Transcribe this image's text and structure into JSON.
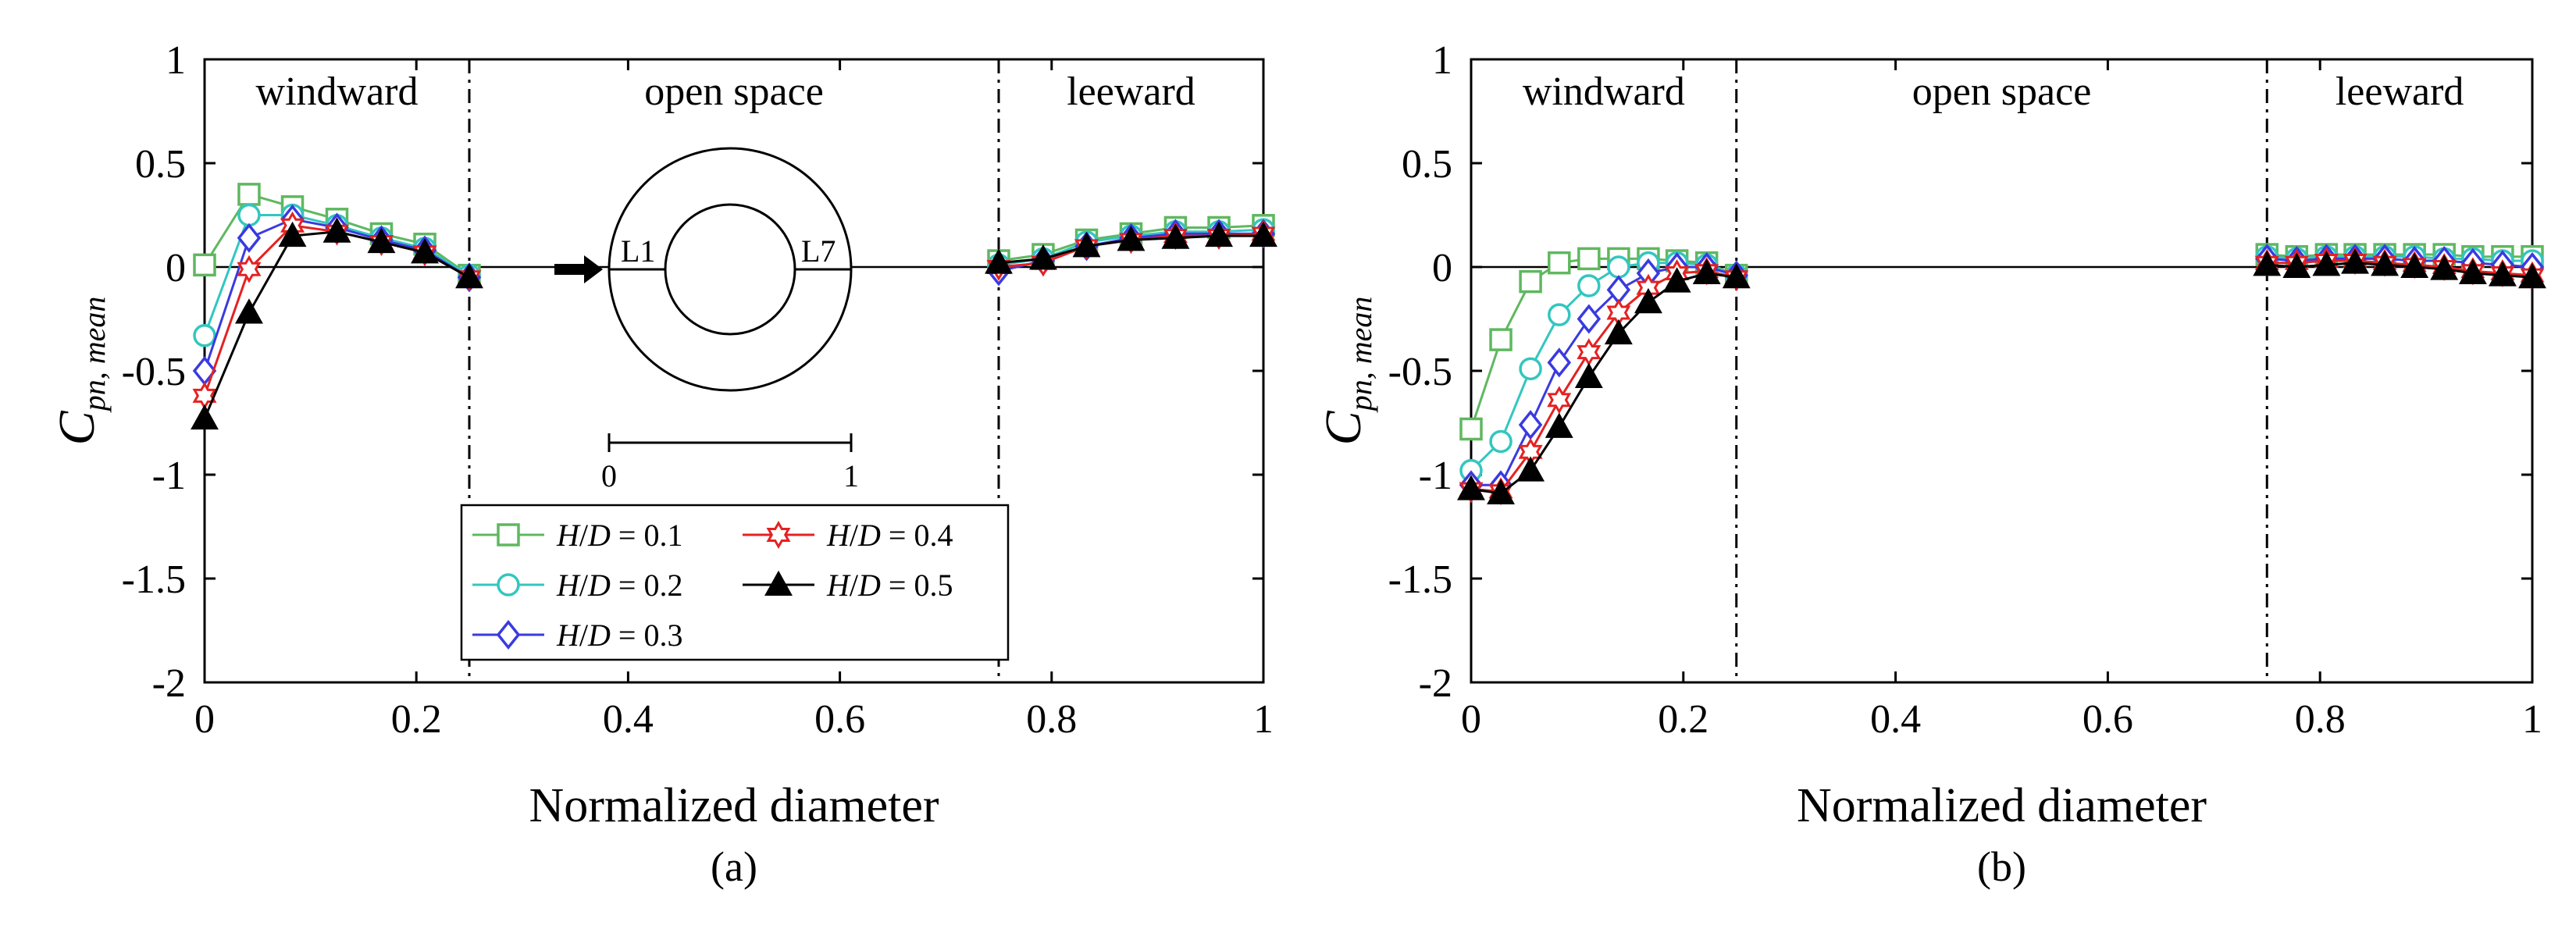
{
  "figure": {
    "marker_styles": {
      "H/D = 0.1": {
        "marker": "square",
        "color": "#5fb85f"
      },
      "H/D = 0.2": {
        "marker": "circle",
        "color": "#33c6c0"
      },
      "H/D = 0.3": {
        "marker": "diamond",
        "color": "#3a3ae0"
      },
      "H/D = 0.4": {
        "marker": "hexagram",
        "color": "#e52121"
      },
      "H/D = 0.5": {
        "marker": "triangle-filled",
        "color": "#000000"
      }
    }
  },
  "chart_data": [
    {
      "type": "line",
      "panel_label": "(a)",
      "xlabel": "Normalized diameter",
      "ylabel": {
        "main": "C",
        "sub": "pn, mean"
      },
      "xlim": [
        0,
        1
      ],
      "ylim": [
        -2,
        1
      ],
      "xticks": [
        "0",
        "0.2",
        "0.4",
        "0.6",
        "0.8",
        "1"
      ],
      "yticks": [
        "1",
        "0.5",
        "0",
        "-0.5",
        "-1",
        "-1.5",
        "-2"
      ],
      "regions": [
        {
          "label": "windward",
          "at": 0.125
        },
        {
          "label": "open space",
          "at": 0.5
        },
        {
          "label": "leeward",
          "at": 0.875
        }
      ],
      "dividers": [
        0.25,
        0.75
      ],
      "legend": {
        "prefix": "H",
        "slash": "/",
        "denominator": "D",
        "entries": [
          {
            "value": "= 0.1",
            "series": 0
          },
          {
            "value": "= 0.4",
            "series": 3
          },
          {
            "value": "= 0.2",
            "series": 1
          },
          {
            "value": "= 0.5",
            "series": 4
          },
          {
            "value": "= 0.3",
            "series": 2
          }
        ]
      },
      "inset": {
        "left_label": "L1",
        "right_label": "L7",
        "scale_start": "0",
        "scale_end": "1"
      },
      "series": [
        {
          "name": "H/D = 0.1",
          "windward": {
            "x": [
              0,
              0.042,
              0.083,
              0.125,
              0.167,
              0.208,
              0.25
            ],
            "y": [
              0.01,
              0.35,
              0.29,
              0.23,
              0.16,
              0.11,
              -0.04
            ]
          },
          "leeward": {
            "x": [
              0.75,
              0.792,
              0.833,
              0.875,
              0.917,
              0.958,
              1.0
            ],
            "y": [
              0.03,
              0.06,
              0.13,
              0.16,
              0.19,
              0.19,
              0.2
            ]
          }
        },
        {
          "name": "H/D = 0.2",
          "windward": {
            "x": [
              0,
              0.042,
              0.083,
              0.125,
              0.167,
              0.208,
              0.25
            ],
            "y": [
              -0.33,
              0.25,
              0.25,
              0.2,
              0.14,
              0.09,
              -0.04
            ]
          },
          "leeward": {
            "x": [
              0.75,
              0.792,
              0.833,
              0.875,
              0.917,
              0.958,
              1.0
            ],
            "y": [
              0.01,
              0.04,
              0.12,
              0.15,
              0.17,
              0.17,
              0.18
            ]
          }
        },
        {
          "name": "H/D = 0.3",
          "windward": {
            "x": [
              0,
              0.042,
              0.083,
              0.125,
              0.167,
              0.208,
              0.25
            ],
            "y": [
              -0.5,
              0.14,
              0.23,
              0.19,
              0.13,
              0.08,
              -0.05
            ]
          },
          "leeward": {
            "x": [
              0.75,
              0.792,
              0.833,
              0.875,
              0.917,
              0.958,
              1.0
            ],
            "y": [
              -0.02,
              0.03,
              0.1,
              0.14,
              0.16,
              0.16,
              0.16
            ]
          }
        },
        {
          "name": "H/D = 0.4",
          "windward": {
            "x": [
              0,
              0.042,
              0.083,
              0.125,
              0.167,
              0.208,
              0.25
            ],
            "y": [
              -0.62,
              -0.01,
              0.2,
              0.17,
              0.12,
              0.07,
              -0.05
            ]
          },
          "leeward": {
            "x": [
              0.75,
              0.792,
              0.833,
              0.875,
              0.917,
              0.958,
              1.0
            ],
            "y": [
              0.0,
              0.02,
              0.1,
              0.13,
              0.15,
              0.15,
              0.16
            ]
          }
        },
        {
          "name": "H/D = 0.5",
          "windward": {
            "x": [
              0,
              0.042,
              0.083,
              0.125,
              0.167,
              0.208,
              0.25
            ],
            "y": [
              -0.73,
              -0.22,
              0.15,
              0.17,
              0.12,
              0.07,
              -0.05
            ]
          },
          "leeward": {
            "x": [
              0.75,
              0.792,
              0.833,
              0.875,
              0.917,
              0.958,
              1.0
            ],
            "y": [
              0.02,
              0.04,
              0.1,
              0.13,
              0.14,
              0.15,
              0.15
            ]
          }
        }
      ]
    },
    {
      "type": "line",
      "panel_label": "(b)",
      "xlabel": "Normalized diameter",
      "ylabel": {
        "main": "C",
        "sub": "pn, mean"
      },
      "xlim": [
        0,
        1
      ],
      "ylim": [
        -2,
        1
      ],
      "xticks": [
        "0",
        "0.2",
        "0.4",
        "0.6",
        "0.8",
        "1"
      ],
      "yticks": [
        "1",
        "0.5",
        "0",
        "-0.5",
        "-1",
        "-1.5",
        "-2"
      ],
      "regions": [
        {
          "label": "windward",
          "at": 0.125
        },
        {
          "label": "open space",
          "at": 0.5
        },
        {
          "label": "leeward",
          "at": 0.875
        }
      ],
      "dividers": [
        0.25,
        0.75
      ],
      "series": [
        {
          "name": "H/D = 0.1",
          "windward": {
            "x": [
              0,
              0.028,
              0.056,
              0.083,
              0.111,
              0.139,
              0.167,
              0.194,
              0.222,
              0.25
            ],
            "y": [
              -0.78,
              -0.35,
              -0.07,
              0.02,
              0.04,
              0.04,
              0.04,
              0.03,
              0.02,
              -0.04
            ]
          },
          "leeward": {
            "x": [
              0.75,
              0.778,
              0.806,
              0.833,
              0.861,
              0.889,
              0.917,
              0.944,
              0.972,
              1.0
            ],
            "y": [
              0.06,
              0.05,
              0.06,
              0.06,
              0.06,
              0.06,
              0.06,
              0.05,
              0.05,
              0.05
            ]
          }
        },
        {
          "name": "H/D = 0.2",
          "windward": {
            "x": [
              0,
              0.028,
              0.056,
              0.083,
              0.111,
              0.139,
              0.167,
              0.194,
              0.222,
              0.25
            ],
            "y": [
              -0.98,
              -0.84,
              -0.49,
              -0.23,
              -0.09,
              0.0,
              0.02,
              0.02,
              0.01,
              -0.04
            ]
          },
          "leeward": {
            "x": [
              0.75,
              0.778,
              0.806,
              0.833,
              0.861,
              0.889,
              0.917,
              0.944,
              0.972,
              1.0
            ],
            "y": [
              0.05,
              0.04,
              0.05,
              0.05,
              0.05,
              0.05,
              0.04,
              0.04,
              0.03,
              0.03
            ]
          }
        },
        {
          "name": "H/D = 0.3",
          "windward": {
            "x": [
              0,
              0.028,
              0.056,
              0.083,
              0.111,
              0.139,
              0.167,
              0.194,
              0.222,
              0.25
            ],
            "y": [
              -1.05,
              -1.05,
              -0.76,
              -0.46,
              -0.25,
              -0.11,
              -0.03,
              0.0,
              0.0,
              -0.04
            ]
          },
          "leeward": {
            "x": [
              0.75,
              0.778,
              0.806,
              0.833,
              0.861,
              0.889,
              0.917,
              0.944,
              0.972,
              1.0
            ],
            "y": [
              0.04,
              0.03,
              0.04,
              0.04,
              0.04,
              0.03,
              0.03,
              0.02,
              0.01,
              0.0
            ]
          }
        },
        {
          "name": "H/D = 0.4",
          "windward": {
            "x": [
              0,
              0.028,
              0.056,
              0.083,
              0.111,
              0.139,
              0.167,
              0.194,
              0.222,
              0.25
            ],
            "y": [
              -1.07,
              -1.08,
              -0.89,
              -0.64,
              -0.41,
              -0.22,
              -0.1,
              -0.03,
              -0.02,
              -0.05
            ]
          },
          "leeward": {
            "x": [
              0.75,
              0.778,
              0.806,
              0.833,
              0.861,
              0.889,
              0.917,
              0.944,
              0.972,
              1.0
            ],
            "y": [
              0.02,
              0.02,
              0.03,
              0.03,
              0.02,
              0.01,
              0.0,
              -0.02,
              -0.03,
              -0.04
            ]
          }
        },
        {
          "name": "H/D = 0.5",
          "windward": {
            "x": [
              0,
              0.028,
              0.056,
              0.083,
              0.111,
              0.139,
              0.167,
              0.194,
              0.222,
              0.25
            ],
            "y": [
              -1.07,
              -1.09,
              -0.98,
              -0.77,
              -0.53,
              -0.32,
              -0.17,
              -0.07,
              -0.03,
              -0.05
            ]
          },
          "leeward": {
            "x": [
              0.75,
              0.778,
              0.806,
              0.833,
              0.861,
              0.889,
              0.917,
              0.944,
              0.972,
              1.0
            ],
            "y": [
              0.01,
              0.0,
              0.01,
              0.02,
              0.01,
              0.0,
              -0.01,
              -0.03,
              -0.04,
              -0.05
            ]
          }
        }
      ]
    }
  ]
}
